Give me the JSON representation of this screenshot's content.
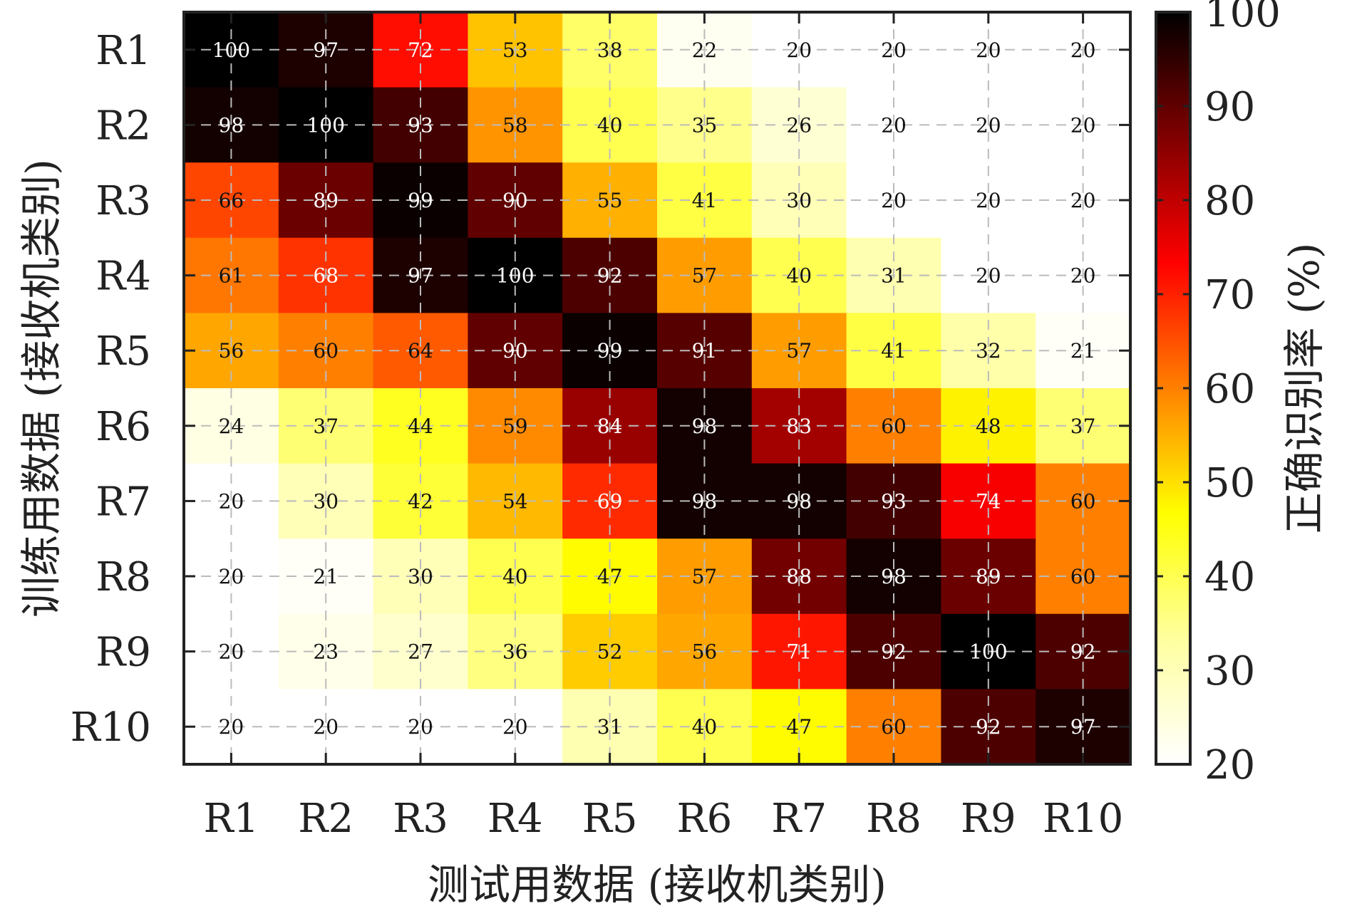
{
  "chart_data": {
    "type": "heatmap",
    "x_categories": [
      "R1",
      "R2",
      "R3",
      "R4",
      "R5",
      "R6",
      "R7",
      "R8",
      "R9",
      "R10"
    ],
    "y_categories": [
      "R1",
      "R2",
      "R3",
      "R4",
      "R5",
      "R6",
      "R7",
      "R8",
      "R9",
      "R10"
    ],
    "values": [
      [
        100,
        97,
        72,
        53,
        38,
        22,
        20,
        20,
        20,
        20
      ],
      [
        98,
        100,
        93,
        58,
        40,
        35,
        26,
        20,
        20,
        20
      ],
      [
        66,
        89,
        99,
        90,
        55,
        41,
        30,
        20,
        20,
        20
      ],
      [
        61,
        68,
        97,
        100,
        92,
        57,
        40,
        31,
        20,
        20
      ],
      [
        56,
        60,
        64,
        90,
        99,
        91,
        57,
        41,
        32,
        21
      ],
      [
        24,
        37,
        44,
        59,
        84,
        98,
        83,
        60,
        48,
        37
      ],
      [
        20,
        30,
        42,
        54,
        69,
        98,
        98,
        93,
        74,
        60
      ],
      [
        20,
        21,
        30,
        40,
        47,
        57,
        88,
        98,
        89,
        60
      ],
      [
        20,
        23,
        27,
        36,
        52,
        56,
        71,
        92,
        100,
        92
      ],
      [
        20,
        20,
        20,
        20,
        31,
        40,
        47,
        60,
        92,
        97
      ]
    ],
    "xlabel": "测试用数据 (接收机类别)",
    "ylabel": "训练用数据 (接收机类别)",
    "colorbar": {
      "label": "正确识别率 (%)",
      "range": [
        20,
        100
      ],
      "ticks": [
        "20",
        "30",
        "40",
        "50",
        "60",
        "70",
        "80",
        "90",
        "100"
      ],
      "colormap": "hot-reversed"
    },
    "grid": true
  },
  "colors": {
    "colormap_stops": [
      "#ffffff",
      "#ffffa0",
      "#ffff00",
      "#ff8000",
      "#ff0000",
      "#800000",
      "#000000"
    ],
    "frame": "#222222",
    "grid": "#bbbbbb"
  }
}
